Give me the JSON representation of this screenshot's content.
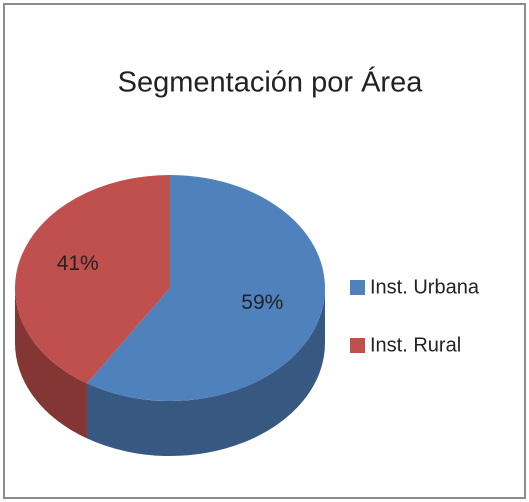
{
  "chart_data": {
    "type": "pie",
    "title": "Segmentación por Área",
    "categories": [
      "Inst. Urbana",
      "Inst. Rural"
    ],
    "values": [
      59,
      41
    ],
    "value_labels": [
      "59%",
      "41%"
    ],
    "colors": [
      "#4f81bd",
      "#c0504d"
    ],
    "legend": "right"
  }
}
